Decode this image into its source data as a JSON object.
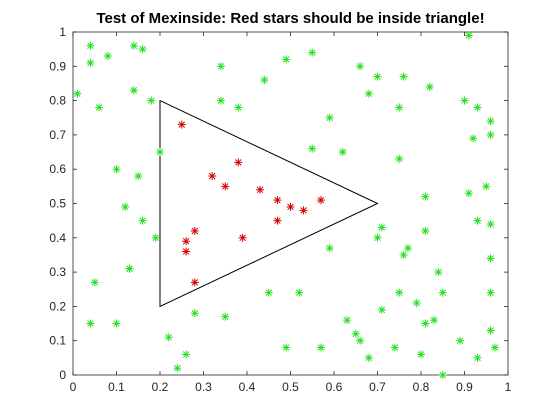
{
  "chart_data": {
    "type": "scatter",
    "title": "Test of Mexinside: Red stars should be inside triangle!",
    "xlim": [
      0,
      1
    ],
    "ylim": [
      0,
      1
    ],
    "xticks": [
      "0",
      "0.1",
      "0.2",
      "0.3",
      "0.4",
      "0.5",
      "0.6",
      "0.7",
      "0.8",
      "0.9",
      "1"
    ],
    "yticks": [
      "0",
      "0.1",
      "0.2",
      "0.3",
      "0.4",
      "0.5",
      "0.6",
      "0.7",
      "0.8",
      "0.9",
      "1"
    ],
    "grid": false,
    "triangle": [
      [
        0.2,
        0.8
      ],
      [
        0.7,
        0.5
      ],
      [
        0.2,
        0.2
      ]
    ],
    "colors": {
      "inside": "#d40000",
      "outside": "#22e022",
      "triangle": "#000000",
      "axes": "#262626"
    },
    "series": [
      {
        "role": "inside",
        "marker": "star",
        "points": [
          [
            0.25,
            0.73
          ],
          [
            0.38,
            0.62
          ],
          [
            0.32,
            0.58
          ],
          [
            0.35,
            0.55
          ],
          [
            0.43,
            0.54
          ],
          [
            0.47,
            0.51
          ],
          [
            0.5,
            0.49
          ],
          [
            0.53,
            0.48
          ],
          [
            0.57,
            0.51
          ],
          [
            0.47,
            0.45
          ],
          [
            0.28,
            0.42
          ],
          [
            0.26,
            0.39
          ],
          [
            0.26,
            0.36
          ],
          [
            0.39,
            0.4
          ],
          [
            0.28,
            0.27
          ]
        ]
      },
      {
        "role": "outside",
        "marker": "star",
        "points": [
          [
            0.01,
            0.82
          ],
          [
            0.04,
            0.96
          ],
          [
            0.04,
            0.91
          ],
          [
            0.08,
            0.93
          ],
          [
            0.06,
            0.78
          ],
          [
            0.14,
            0.96
          ],
          [
            0.16,
            0.95
          ],
          [
            0.14,
            0.83
          ],
          [
            0.18,
            0.8
          ],
          [
            0.2,
            0.65
          ],
          [
            0.1,
            0.6
          ],
          [
            0.15,
            0.58
          ],
          [
            0.12,
            0.49
          ],
          [
            0.16,
            0.45
          ],
          [
            0.19,
            0.4
          ],
          [
            0.13,
            0.31
          ],
          [
            0.13,
            0.31
          ],
          [
            0.05,
            0.27
          ],
          [
            0.04,
            0.15
          ],
          [
            0.1,
            0.15
          ],
          [
            0.22,
            0.11
          ],
          [
            0.24,
            0.02
          ],
          [
            0.26,
            0.06
          ],
          [
            0.28,
            0.18
          ],
          [
            0.35,
            0.17
          ],
          [
            0.34,
            0.9
          ],
          [
            0.34,
            0.8
          ],
          [
            0.38,
            0.78
          ],
          [
            0.44,
            0.86
          ],
          [
            0.49,
            0.92
          ],
          [
            0.55,
            0.94
          ],
          [
            0.59,
            0.75
          ],
          [
            0.55,
            0.66
          ],
          [
            0.62,
            0.65
          ],
          [
            0.59,
            0.37
          ],
          [
            0.45,
            0.24
          ],
          [
            0.52,
            0.24
          ],
          [
            0.49,
            0.08
          ],
          [
            0.57,
            0.08
          ],
          [
            0.63,
            0.16
          ],
          [
            0.65,
            0.12
          ],
          [
            0.66,
            0.1
          ],
          [
            0.66,
            0.9
          ],
          [
            0.68,
            0.82
          ],
          [
            0.7,
            0.87
          ],
          [
            0.71,
            0.43
          ],
          [
            0.7,
            0.4
          ],
          [
            0.71,
            0.19
          ],
          [
            0.68,
            0.05
          ],
          [
            0.74,
            0.08
          ],
          [
            0.76,
            0.87
          ],
          [
            0.75,
            0.78
          ],
          [
            0.75,
            0.63
          ],
          [
            0.77,
            0.37
          ],
          [
            0.76,
            0.35
          ],
          [
            0.75,
            0.24
          ],
          [
            0.79,
            0.21
          ],
          [
            0.81,
            0.42
          ],
          [
            0.81,
            0.52
          ],
          [
            0.81,
            0.15
          ],
          [
            0.82,
            0.84
          ],
          [
            0.83,
            0.16
          ],
          [
            0.8,
            0.06
          ],
          [
            0.84,
            0.3
          ],
          [
            0.85,
            0.24
          ],
          [
            0.85,
            0.0
          ],
          [
            0.91,
            0.99
          ],
          [
            0.9,
            0.8
          ],
          [
            0.92,
            0.69
          ],
          [
            0.91,
            0.53
          ],
          [
            0.93,
            0.78
          ],
          [
            0.96,
            0.74
          ],
          [
            0.96,
            0.7
          ],
          [
            0.95,
            0.55
          ],
          [
            0.93,
            0.45
          ],
          [
            0.96,
            0.44
          ],
          [
            0.96,
            0.34
          ],
          [
            0.96,
            0.24
          ],
          [
            0.96,
            0.13
          ],
          [
            0.89,
            0.1
          ],
          [
            0.93,
            0.05
          ],
          [
            0.97,
            0.08
          ]
        ]
      }
    ]
  }
}
